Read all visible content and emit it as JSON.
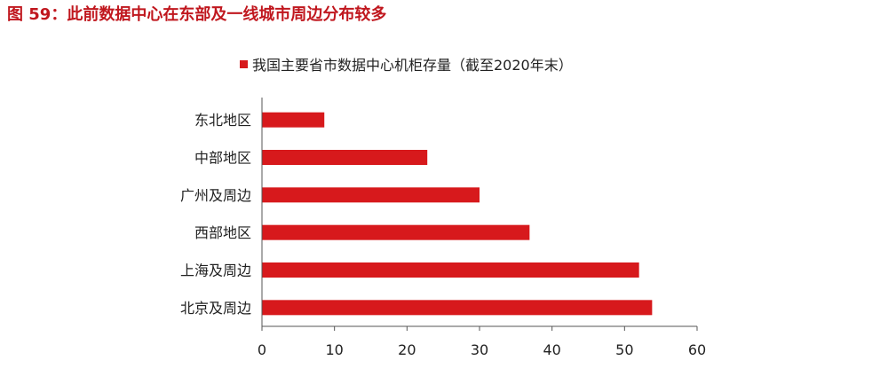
{
  "figure_title": "图 59：此前数据中心在东部及一线城市周边分布较多",
  "chart_data": {
    "type": "bar",
    "orientation": "horizontal",
    "categories": [
      "东北地区",
      "中部地区",
      "广州及周边",
      "西部地区",
      "上海及周边",
      "北京及周边"
    ],
    "series": [
      {
        "name": "我国主要省市数据中心机柜存量（截至2020年末）",
        "values": [
          8.6,
          22.8,
          30.0,
          36.9,
          52.0,
          53.8
        ],
        "color": "#d7191c"
      }
    ],
    "xlim": [
      0,
      60
    ],
    "xticks": [
      0,
      10,
      20,
      30,
      40,
      50,
      60
    ],
    "grid": false,
    "legend_position": "top"
  }
}
